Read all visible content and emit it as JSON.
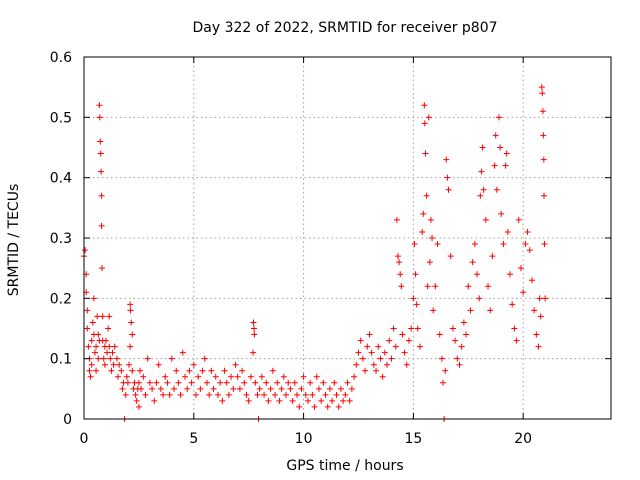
{
  "chart_data": {
    "type": "scatter",
    "title": "Day 322 of 2022, SRMTID for receiver p807",
    "xlabel": "GPS time / hours",
    "ylabel": "SRMTID / TECUs",
    "xlim": [
      0,
      24
    ],
    "ylim": [
      0,
      0.6
    ],
    "x_ticks": [
      0,
      5,
      10,
      15,
      20
    ],
    "x_tick_labels": [
      "0",
      "5",
      "10",
      "15",
      "20"
    ],
    "y_ticks": [
      0,
      0.1,
      0.2,
      0.3,
      0.4,
      0.5,
      0.6
    ],
    "y_tick_labels": [
      "0",
      "0.1",
      "0.2",
      "0.3",
      "0.4",
      "0.5",
      "0.6"
    ],
    "grid": true,
    "marker": "plus",
    "color": "#ff0000",
    "series": [
      {
        "name": "p807",
        "points": [
          [
            0.0,
            0.27
          ],
          [
            0.05,
            0.28
          ],
          [
            0.1,
            0.24
          ],
          [
            0.1,
            0.21
          ],
          [
            0.15,
            0.18
          ],
          [
            0.15,
            0.15
          ],
          [
            0.2,
            0.12
          ],
          [
            0.25,
            0.1
          ],
          [
            0.25,
            0.08
          ],
          [
            0.3,
            0.07
          ],
          [
            0.35,
            0.09
          ],
          [
            0.35,
            0.13
          ],
          [
            0.4,
            0.16
          ],
          [
            0.45,
            0.2
          ],
          [
            0.45,
            0.14
          ],
          [
            0.5,
            0.11
          ],
          [
            0.55,
            0.08
          ],
          [
            0.55,
            0.12
          ],
          [
            0.6,
            0.17
          ],
          [
            0.65,
            0.14
          ],
          [
            0.65,
            0.1
          ],
          [
            0.7,
            0.13
          ],
          [
            0.7,
            0.52
          ],
          [
            0.72,
            0.5
          ],
          [
            0.74,
            0.46
          ],
          [
            0.76,
            0.44
          ],
          [
            0.78,
            0.41
          ],
          [
            0.8,
            0.37
          ],
          [
            0.8,
            0.32
          ],
          [
            0.82,
            0.25
          ],
          [
            0.85,
            0.17
          ],
          [
            0.85,
            0.13
          ],
          [
            0.9,
            0.1
          ],
          [
            0.95,
            0.12
          ],
          [
            0.95,
            0.09
          ],
          [
            1.0,
            0.13
          ],
          [
            1.05,
            0.11
          ],
          [
            1.1,
            0.15
          ],
          [
            1.15,
            0.17
          ],
          [
            1.15,
            0.12
          ],
          [
            1.2,
            0.1
          ],
          [
            1.25,
            0.08
          ],
          [
            1.3,
            0.11
          ],
          [
            1.35,
            0.09
          ],
          [
            1.4,
            0.12
          ],
          [
            1.5,
            0.1
          ],
          [
            1.55,
            0.07
          ],
          [
            1.6,
            0.09
          ],
          [
            1.7,
            0.08
          ],
          [
            1.75,
            0.05
          ],
          [
            1.8,
            0.06
          ],
          [
            1.85,
            0.0
          ],
          [
            1.9,
            0.04
          ],
          [
            1.95,
            0.07
          ],
          [
            2.0,
            0.06
          ],
          [
            2.05,
            0.09
          ],
          [
            2.1,
            0.12
          ],
          [
            2.1,
            0.19
          ],
          [
            2.12,
            0.18
          ],
          [
            2.15,
            0.16
          ],
          [
            2.2,
            0.14
          ],
          [
            2.2,
            0.08
          ],
          [
            2.25,
            0.05
          ],
          [
            2.3,
            0.06
          ],
          [
            2.35,
            0.04
          ],
          [
            2.4,
            0.03
          ],
          [
            2.45,
            0.05
          ],
          [
            2.5,
            0.02
          ],
          [
            2.5,
            0.06
          ],
          [
            2.55,
            0.08
          ],
          [
            2.6,
            0.05
          ],
          [
            2.7,
            0.07
          ],
          [
            2.8,
            0.04
          ],
          [
            2.9,
            0.1
          ],
          [
            3.0,
            0.06
          ],
          [
            3.1,
            0.05
          ],
          [
            3.2,
            0.03
          ],
          [
            3.3,
            0.06
          ],
          [
            3.4,
            0.09
          ],
          [
            3.5,
            0.05
          ],
          [
            3.6,
            0.04
          ],
          [
            3.7,
            0.07
          ],
          [
            3.8,
            0.06
          ],
          [
            3.9,
            0.04
          ],
          [
            4.0,
            0.1
          ],
          [
            4.1,
            0.05
          ],
          [
            4.2,
            0.08
          ],
          [
            4.3,
            0.06
          ],
          [
            4.4,
            0.04
          ],
          [
            4.5,
            0.11
          ],
          [
            4.6,
            0.07
          ],
          [
            4.7,
            0.05
          ],
          [
            4.8,
            0.08
          ],
          [
            4.9,
            0.06
          ],
          [
            5.0,
            0.09
          ],
          [
            5.1,
            0.04
          ],
          [
            5.2,
            0.07
          ],
          [
            5.3,
            0.05
          ],
          [
            5.4,
            0.08
          ],
          [
            5.5,
            0.1
          ],
          [
            5.6,
            0.06
          ],
          [
            5.7,
            0.04
          ],
          [
            5.8,
            0.08
          ],
          [
            5.9,
            0.05
          ],
          [
            6.0,
            0.07
          ],
          [
            6.1,
            0.04
          ],
          [
            6.2,
            0.06
          ],
          [
            6.3,
            0.03
          ],
          [
            6.4,
            0.08
          ],
          [
            6.5,
            0.06
          ],
          [
            6.6,
            0.04
          ],
          [
            6.7,
            0.07
          ],
          [
            6.8,
            0.05
          ],
          [
            6.9,
            0.09
          ],
          [
            7.0,
            0.07
          ],
          [
            7.1,
            0.05
          ],
          [
            7.2,
            0.08
          ],
          [
            7.3,
            0.06
          ],
          [
            7.4,
            0.04
          ],
          [
            7.5,
            0.03
          ],
          [
            7.6,
            0.07
          ],
          [
            7.7,
            0.11
          ],
          [
            7.72,
            0.16
          ],
          [
            7.74,
            0.15
          ],
          [
            7.76,
            0.14
          ],
          [
            7.8,
            0.06
          ],
          [
            7.9,
            0.04
          ],
          [
            7.95,
            0.0
          ],
          [
            8.0,
            0.05
          ],
          [
            8.1,
            0.07
          ],
          [
            8.2,
            0.04
          ],
          [
            8.3,
            0.06
          ],
          [
            8.4,
            0.03
          ],
          [
            8.5,
            0.05
          ],
          [
            8.6,
            0.08
          ],
          [
            8.7,
            0.04
          ],
          [
            8.8,
            0.06
          ],
          [
            8.9,
            0.03
          ],
          [
            9.0,
            0.05
          ],
          [
            9.1,
            0.07
          ],
          [
            9.2,
            0.04
          ],
          [
            9.3,
            0.06
          ],
          [
            9.4,
            0.05
          ],
          [
            9.5,
            0.03
          ],
          [
            9.6,
            0.06
          ],
          [
            9.7,
            0.04
          ],
          [
            9.8,
            0.02
          ],
          [
            9.9,
            0.05
          ],
          [
            10.0,
            0.07
          ],
          [
            10.1,
            0.04
          ],
          [
            10.2,
            0.03
          ],
          [
            10.3,
            0.06
          ],
          [
            10.4,
            0.04
          ],
          [
            10.5,
            0.02
          ],
          [
            10.6,
            0.07
          ],
          [
            10.7,
            0.05
          ],
          [
            10.8,
            0.03
          ],
          [
            10.9,
            0.06
          ],
          [
            11.0,
            0.04
          ],
          [
            11.1,
            0.02
          ],
          [
            11.2,
            0.05
          ],
          [
            11.3,
            0.03
          ],
          [
            11.4,
            0.06
          ],
          [
            11.5,
            0.04
          ],
          [
            11.6,
            0.02
          ],
          [
            11.7,
            0.05
          ],
          [
            11.8,
            0.03
          ],
          [
            11.9,
            0.04
          ],
          [
            12.0,
            0.06
          ],
          [
            12.1,
            0.03
          ],
          [
            12.2,
            0.05
          ],
          [
            12.3,
            0.07
          ],
          [
            12.4,
            0.09
          ],
          [
            12.5,
            0.11
          ],
          [
            12.6,
            0.13
          ],
          [
            12.7,
            0.1
          ],
          [
            12.8,
            0.08
          ],
          [
            12.9,
            0.12
          ],
          [
            13.0,
            0.14
          ],
          [
            13.1,
            0.11
          ],
          [
            13.2,
            0.09
          ],
          [
            13.3,
            0.08
          ],
          [
            13.4,
            0.12
          ],
          [
            13.5,
            0.1
          ],
          [
            13.6,
            0.07
          ],
          [
            13.7,
            0.11
          ],
          [
            13.8,
            0.09
          ],
          [
            13.9,
            0.13
          ],
          [
            14.0,
            0.1
          ],
          [
            14.1,
            0.15
          ],
          [
            14.2,
            0.12
          ],
          [
            14.25,
            0.33
          ],
          [
            14.3,
            0.27
          ],
          [
            14.35,
            0.26
          ],
          [
            14.4,
            0.24
          ],
          [
            14.45,
            0.22
          ],
          [
            14.5,
            0.14
          ],
          [
            14.6,
            0.11
          ],
          [
            14.7,
            0.09
          ],
          [
            14.8,
            0.13
          ],
          [
            14.9,
            0.15
          ],
          [
            15.0,
            0.2
          ],
          [
            15.05,
            0.29
          ],
          [
            15.1,
            0.24
          ],
          [
            15.15,
            0.19
          ],
          [
            15.2,
            0.15
          ],
          [
            15.3,
            0.12
          ],
          [
            15.4,
            0.31
          ],
          [
            15.45,
            0.34
          ],
          [
            15.5,
            0.52
          ],
          [
            15.52,
            0.49
          ],
          [
            15.55,
            0.44
          ],
          [
            15.6,
            0.37
          ],
          [
            15.65,
            0.22
          ],
          [
            15.7,
            0.5
          ],
          [
            15.75,
            0.26
          ],
          [
            15.8,
            0.33
          ],
          [
            15.85,
            0.3
          ],
          [
            15.9,
            0.18
          ],
          [
            16.0,
            0.22
          ],
          [
            16.1,
            0.29
          ],
          [
            16.2,
            0.14
          ],
          [
            16.3,
            0.1
          ],
          [
            16.35,
            0.06
          ],
          [
            16.4,
            0.0
          ],
          [
            16.45,
            0.08
          ],
          [
            16.5,
            0.43
          ],
          [
            16.55,
            0.4
          ],
          [
            16.6,
            0.38
          ],
          [
            16.7,
            0.27
          ],
          [
            16.8,
            0.15
          ],
          [
            16.9,
            0.13
          ],
          [
            17.0,
            0.1
          ],
          [
            17.1,
            0.09
          ],
          [
            17.2,
            0.12
          ],
          [
            17.3,
            0.16
          ],
          [
            17.4,
            0.14
          ],
          [
            17.5,
            0.22
          ],
          [
            17.6,
            0.18
          ],
          [
            17.7,
            0.26
          ],
          [
            17.8,
            0.29
          ],
          [
            17.9,
            0.24
          ],
          [
            18.0,
            0.2
          ],
          [
            18.05,
            0.37
          ],
          [
            18.1,
            0.41
          ],
          [
            18.15,
            0.45
          ],
          [
            18.2,
            0.38
          ],
          [
            18.3,
            0.33
          ],
          [
            18.4,
            0.22
          ],
          [
            18.5,
            0.18
          ],
          [
            18.6,
            0.27
          ],
          [
            18.7,
            0.42
          ],
          [
            18.75,
            0.47
          ],
          [
            18.8,
            0.38
          ],
          [
            18.9,
            0.5
          ],
          [
            18.95,
            0.45
          ],
          [
            19.0,
            0.34
          ],
          [
            19.1,
            0.29
          ],
          [
            19.2,
            0.42
          ],
          [
            19.25,
            0.44
          ],
          [
            19.3,
            0.31
          ],
          [
            19.4,
            0.24
          ],
          [
            19.5,
            0.19
          ],
          [
            19.6,
            0.15
          ],
          [
            19.7,
            0.13
          ],
          [
            19.8,
            0.33
          ],
          [
            19.9,
            0.25
          ],
          [
            20.0,
            0.21
          ],
          [
            20.1,
            0.29
          ],
          [
            20.2,
            0.31
          ],
          [
            20.3,
            0.28
          ],
          [
            20.4,
            0.23
          ],
          [
            20.5,
            0.18
          ],
          [
            20.6,
            0.14
          ],
          [
            20.7,
            0.12
          ],
          [
            20.75,
            0.2
          ],
          [
            20.8,
            0.17
          ],
          [
            20.85,
            0.55
          ],
          [
            20.87,
            0.54
          ],
          [
            20.9,
            0.51
          ],
          [
            20.92,
            0.47
          ],
          [
            20.94,
            0.43
          ],
          [
            20.95,
            0.37
          ],
          [
            20.97,
            0.29
          ],
          [
            21.0,
            0.2
          ]
        ]
      }
    ]
  }
}
